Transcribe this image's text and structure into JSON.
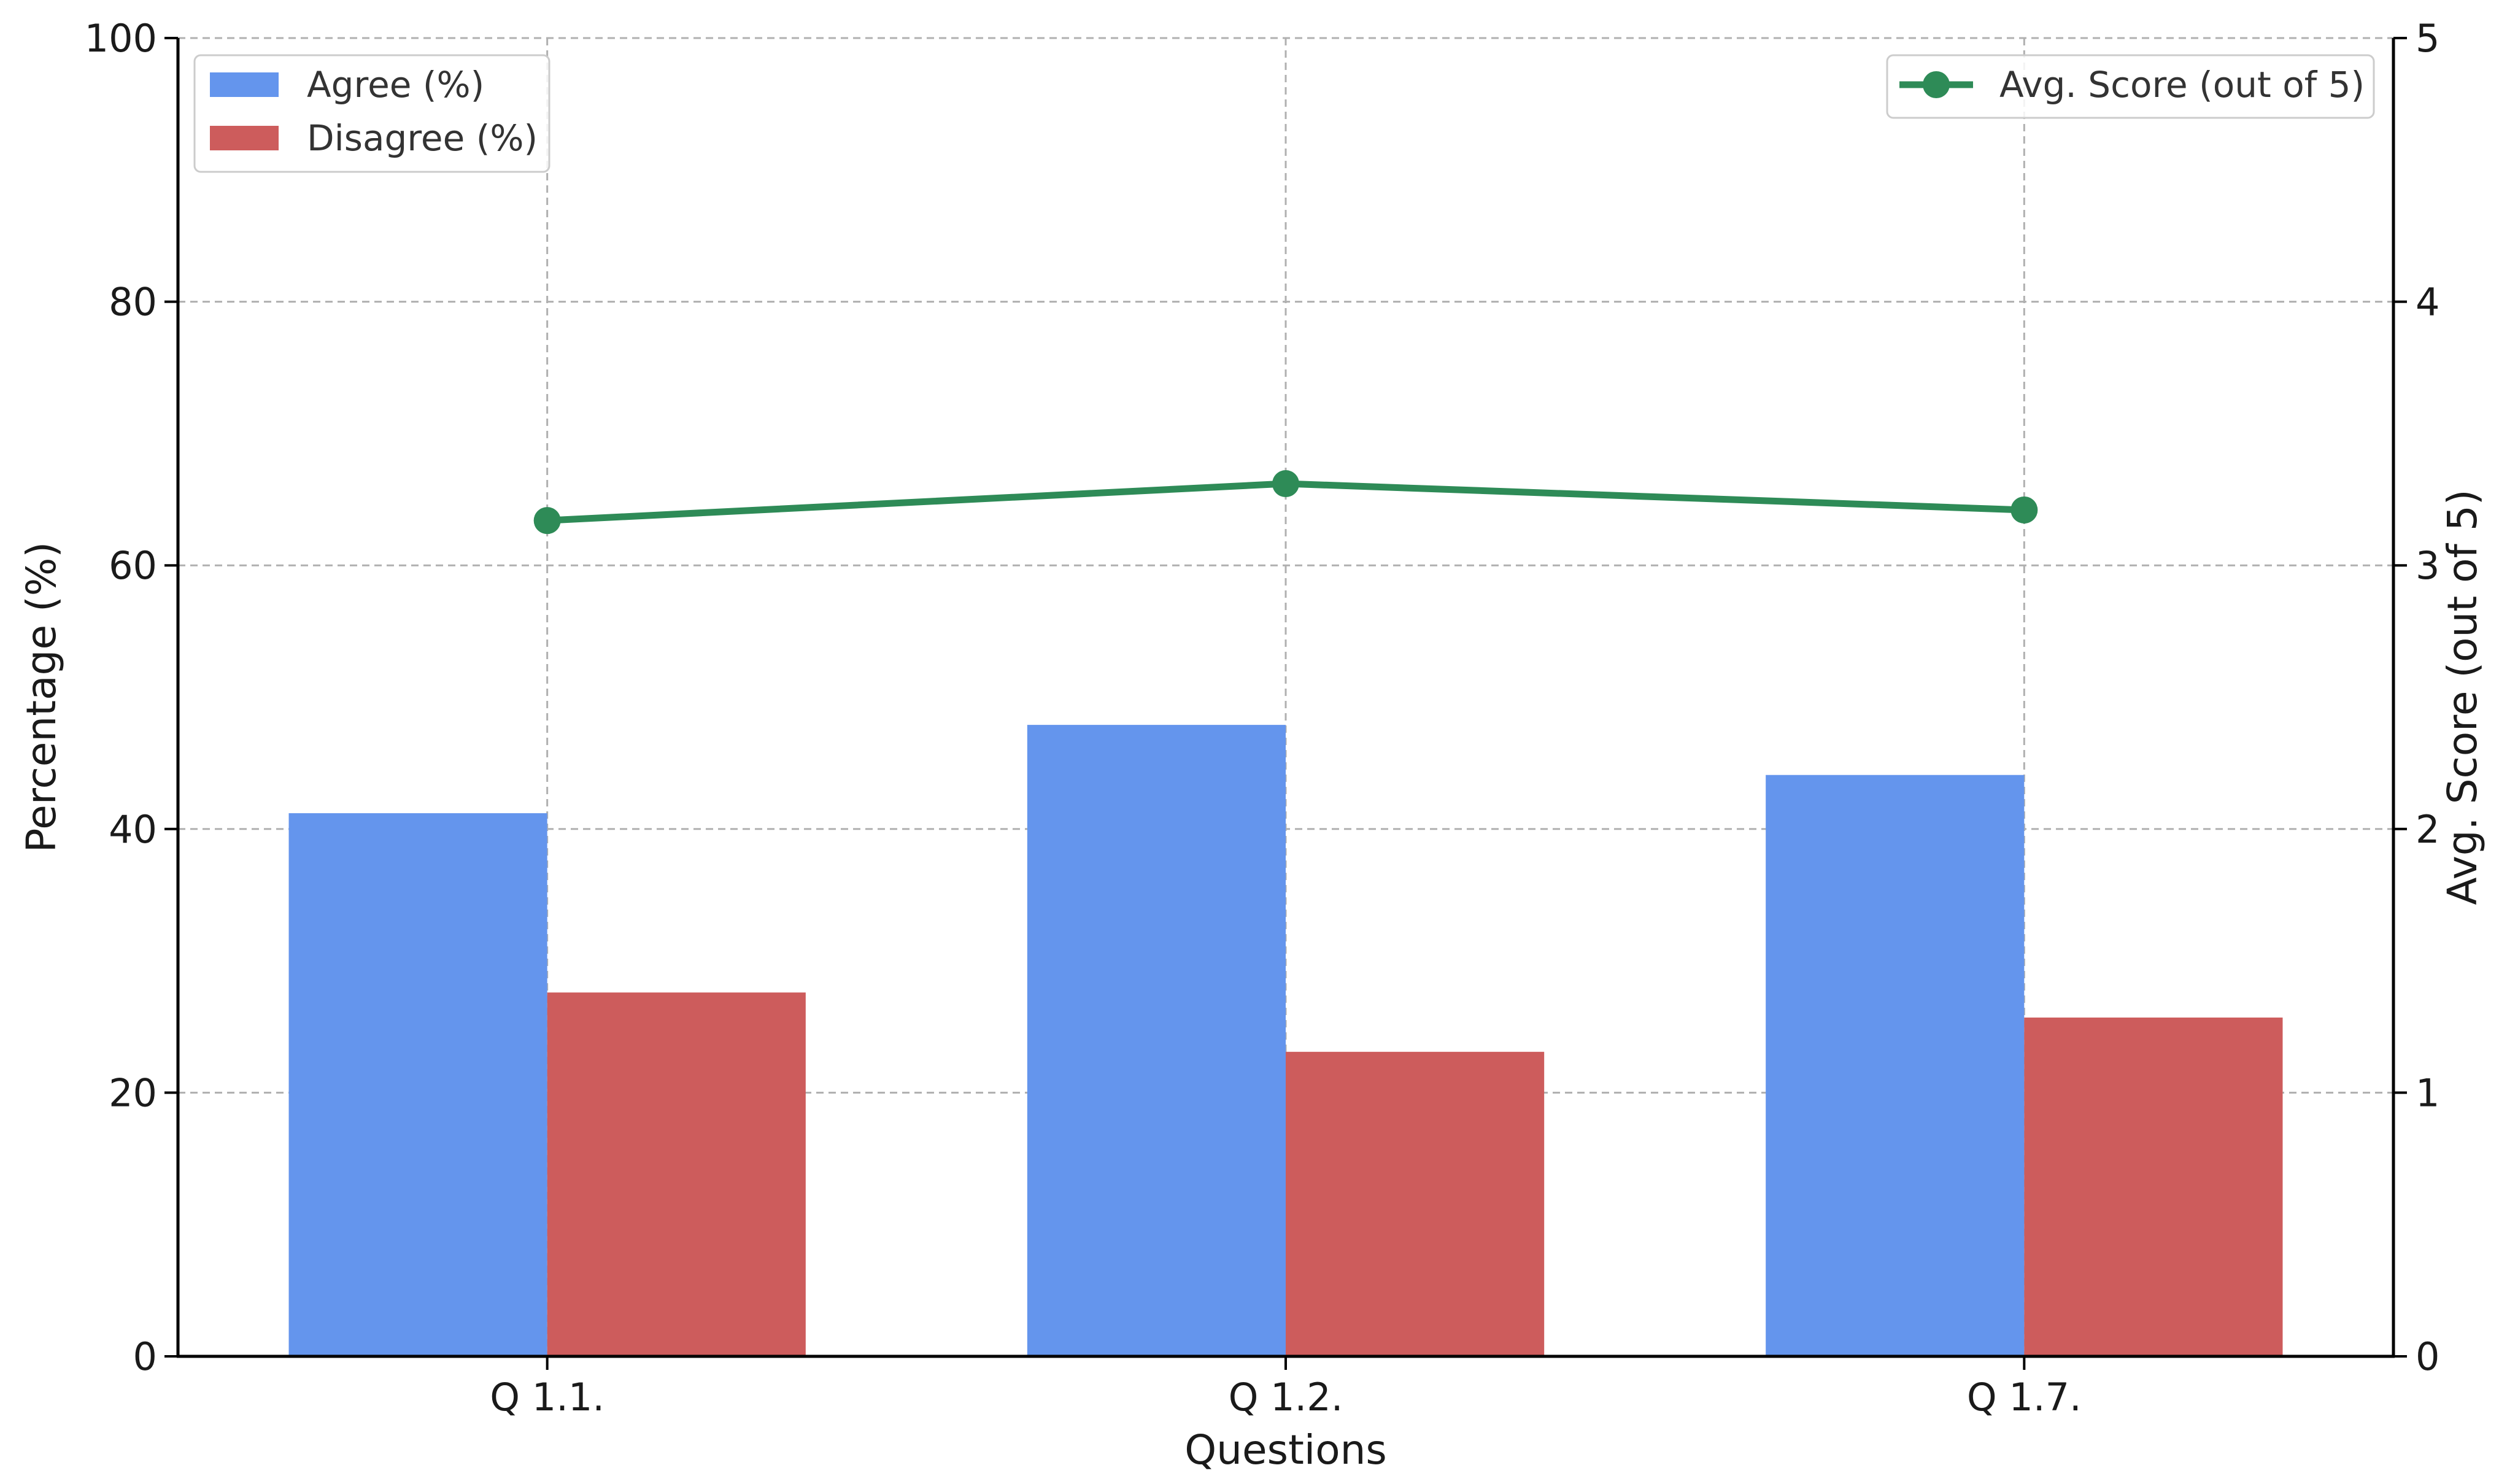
{
  "chart_data": {
    "type": "bar",
    "categories": [
      "Q 1.1.",
      "Q 1.2.",
      "Q 1.7."
    ],
    "series": [
      {
        "name": "Agree (%)",
        "values": [
          41.2,
          47.9,
          44.1
        ],
        "color": "#6495ED",
        "axis": "left",
        "kind": "bar"
      },
      {
        "name": "Disagree (%)",
        "values": [
          27.6,
          23.1,
          25.7
        ],
        "color": "#CD5C5C",
        "axis": "left",
        "kind": "bar"
      },
      {
        "name": "Avg. Score (out of 5)",
        "values": [
          3.17,
          3.31,
          3.21
        ],
        "color": "#2E8B57",
        "axis": "right",
        "kind": "line"
      }
    ],
    "xlabel": "Questions",
    "ylabel": "Percentage (%)",
    "y2label": "Avg. Score (out of 5)",
    "ylim": [
      0,
      100
    ],
    "y2lim": [
      0,
      5
    ],
    "yticks": [
      "0",
      "20",
      "40",
      "60",
      "80",
      "100"
    ],
    "y2ticks": [
      "0",
      "1",
      "2",
      "3",
      "4",
      "5"
    ],
    "grid": true,
    "legend_left_placement": "top-left",
    "legend_right_placement": "top-right"
  }
}
